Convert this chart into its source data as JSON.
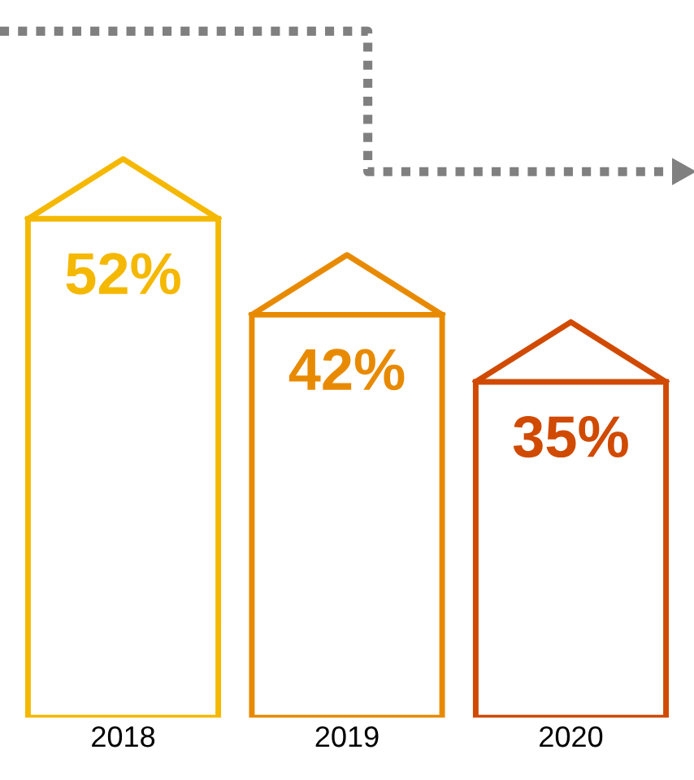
{
  "chart_data": {
    "type": "bar",
    "categories": [
      "2018",
      "2019",
      "2020"
    ],
    "values": [
      52,
      42,
      35
    ],
    "colors": [
      "#f5b800",
      "#e88a00",
      "#d04a02"
    ],
    "value_labels": [
      "52%",
      "42%",
      "35%"
    ],
    "grid": false,
    "legend": false,
    "tick_labels": "x"
  }
}
